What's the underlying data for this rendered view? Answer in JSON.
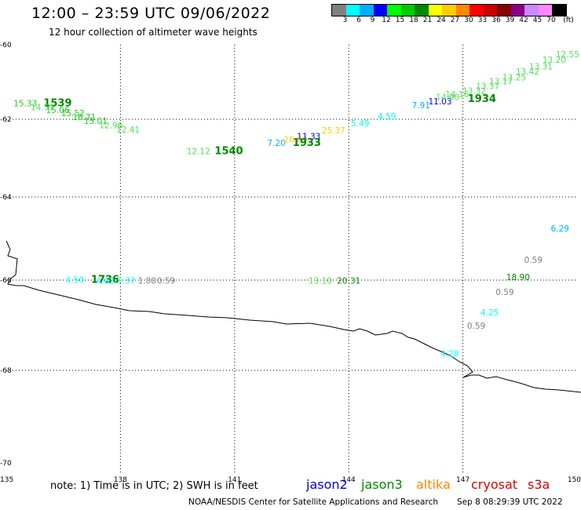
{
  "header": {
    "title": "12:00 – 23:59 UTC 09/06/2022",
    "subtitle": "12 hour collection of altimeter wave heights"
  },
  "colorbar": {
    "colors": [
      "#808080",
      "#00ffff",
      "#00b0ff",
      "#0000ff",
      "#00ff00",
      "#00cc00",
      "#008800",
      "#ffff00",
      "#ffcc00",
      "#ff8800",
      "#ff0000",
      "#cc0000",
      "#880000",
      "#880088",
      "#cc88ff",
      "#ff88ff",
      "#000000"
    ],
    "labels": [
      "3",
      "6",
      "9",
      "12",
      "15",
      "18",
      "21",
      "24",
      "27",
      "30",
      "33",
      "36",
      "39",
      "42",
      "45",
      "70",
      "(ft)"
    ]
  },
  "axes": {
    "lat_ticks": [
      "-60",
      "-62",
      "-64",
      "-66",
      "-68",
      "-70"
    ],
    "lon_ticks": [
      "135",
      "138",
      "141",
      "144",
      "147",
      "150"
    ]
  },
  "measurements": [
    {
      "text": "15.33",
      "color": "#22cc22",
      "lon": 135.5,
      "lat": -61.57,
      "bold": false
    },
    {
      "text": "1539",
      "color": "#008800",
      "lon": 136.35,
      "lat": -61.57,
      "bold": true
    },
    {
      "text": "14.51",
      "color": "#55dd55",
      "lon": 135.95,
      "lat": -61.67,
      "bold": false
    },
    {
      "text": "15.06",
      "color": "#22cc22",
      "lon": 136.35,
      "lat": -61.75,
      "bold": false
    },
    {
      "text": "15.52",
      "color": "#22cc22",
      "lon": 136.75,
      "lat": -61.83,
      "bold": false
    },
    {
      "text": "16.71",
      "color": "#22cc22",
      "lon": 137.05,
      "lat": -61.94,
      "bold": false
    },
    {
      "text": "15.01",
      "color": "#22cc22",
      "lon": 137.35,
      "lat": -62.04,
      "bold": false
    },
    {
      "text": "12.96",
      "color": "#55dd55",
      "lon": 137.75,
      "lat": -62.15,
      "bold": false
    },
    {
      "text": "12.41",
      "color": "#55dd55",
      "lon": 138.2,
      "lat": -62.26,
      "bold": false
    },
    {
      "text": "12.12",
      "color": "#55dd55",
      "lon": 140.05,
      "lat": -62.82,
      "bold": false
    },
    {
      "text": "1540",
      "color": "#008800",
      "lon": 140.85,
      "lat": -62.82,
      "bold": true
    },
    {
      "text": "7.20",
      "color": "#00b0ff",
      "lon": 142.1,
      "lat": -62.61,
      "bold": false
    },
    {
      "text": "26.60",
      "color": "#ffcc00",
      "lon": 142.6,
      "lat": -62.52,
      "bold": false
    },
    {
      "text": "11.33",
      "color": "#0000ff",
      "lon": 142.95,
      "lat": -62.43,
      "bold": false
    },
    {
      "text": "1933",
      "color": "#008800",
      "lon": 142.9,
      "lat": -62.61,
      "bold": true
    },
    {
      "text": "25.37",
      "color": "#ffcc00",
      "lon": 143.6,
      "lat": -62.28,
      "bold": false
    },
    {
      "text": "5.49",
      "color": "#00ffff",
      "lon": 144.3,
      "lat": -62.1,
      "bold": false
    },
    {
      "text": "4.59",
      "color": "#00ffff",
      "lon": 145.0,
      "lat": -61.92,
      "bold": false
    },
    {
      "text": "7.91",
      "color": "#00b0ff",
      "lon": 145.9,
      "lat": -61.62,
      "bold": false
    },
    {
      "text": "11.03",
      "color": "#0000ff",
      "lon": 146.4,
      "lat": -61.52,
      "bold": false
    },
    {
      "text": "14.90",
      "color": "#55dd55",
      "lon": 146.6,
      "lat": -61.4,
      "bold": false
    },
    {
      "text": "14.16",
      "color": "#55dd55",
      "lon": 146.85,
      "lat": -61.33,
      "bold": false
    },
    {
      "text": "13.32",
      "color": "#55dd55",
      "lon": 147.3,
      "lat": -61.23,
      "bold": false
    },
    {
      "text": "1934",
      "color": "#008800",
      "lon": 147.5,
      "lat": -61.45,
      "bold": true
    },
    {
      "text": "13.37",
      "color": "#55dd55",
      "lon": 147.65,
      "lat": -61.1,
      "bold": false
    },
    {
      "text": "13.17",
      "color": "#55dd55",
      "lon": 148.0,
      "lat": -60.98,
      "bold": false
    },
    {
      "text": "13.25",
      "color": "#55dd55",
      "lon": 148.35,
      "lat": -60.87,
      "bold": false
    },
    {
      "text": "13.42",
      "color": "#55dd55",
      "lon": 148.7,
      "lat": -60.72,
      "bold": false
    },
    {
      "text": "13.31",
      "color": "#55dd55",
      "lon": 149.05,
      "lat": -60.58,
      "bold": false
    },
    {
      "text": "13.20",
      "color": "#55dd55",
      "lon": 149.4,
      "lat": -60.4,
      "bold": false
    },
    {
      "text": "12.55",
      "color": "#55dd55",
      "lon": 149.75,
      "lat": -60.25,
      "bold": false
    },
    {
      "text": "4.50",
      "color": "#00ffff",
      "lon": 136.8,
      "lat": -65.99,
      "bold": false
    },
    {
      "text": "1736",
      "color": "#008800",
      "lon": 137.6,
      "lat": -65.99,
      "bold": true
    },
    {
      "text": "4.62",
      "color": "#00ffff",
      "lon": 137.6,
      "lat": -66.01,
      "bold": false
    },
    {
      "text": "5.37",
      "color": "#00ffff",
      "lon": 138.15,
      "lat": -66.01,
      "bold": false
    },
    {
      "text": "1.88",
      "color": "#808080",
      "lon": 138.7,
      "lat": -66.01,
      "bold": false
    },
    {
      "text": "0.59",
      "color": "#808080",
      "lon": 139.2,
      "lat": -66.01,
      "bold": false
    },
    {
      "text": "13.10",
      "color": "#55dd55",
      "lon": 143.25,
      "lat": -66.01,
      "bold": false
    },
    {
      "text": "20.31",
      "color": "#008800",
      "lon": 144.0,
      "lat": -66.01,
      "bold": false
    },
    {
      "text": "6.29",
      "color": "#00b0ff",
      "lon": 149.55,
      "lat": -64.75,
      "bold": false
    },
    {
      "text": "0.59",
      "color": "#808080",
      "lon": 148.85,
      "lat": -65.51,
      "bold": false
    },
    {
      "text": "18.90",
      "color": "#008800",
      "lon": 148.45,
      "lat": -65.92,
      "bold": false
    },
    {
      "text": "0.59",
      "color": "#808080",
      "lon": 148.1,
      "lat": -66.26,
      "bold": false
    },
    {
      "text": "4.25",
      "color": "#00ffff",
      "lon": 147.7,
      "lat": -66.71,
      "bold": false
    },
    {
      "text": "0.59",
      "color": "#808080",
      "lon": 147.35,
      "lat": -67.01,
      "bold": false
    },
    {
      "text": "4.28",
      "color": "#00ffff",
      "lon": 146.65,
      "lat": -67.63,
      "bold": false
    }
  ],
  "footer": {
    "note": "note: 1) Time is in UTC; 2) SWH is in feet",
    "satellites": [
      {
        "name": "jason2",
        "color": "#0000dd"
      },
      {
        "name": "jason3",
        "color": "#008800"
      },
      {
        "name": "altika",
        "color": "#ff8800"
      },
      {
        "name": "cryosat",
        "color": "#dd0000"
      },
      {
        "name": "s3a",
        "color": "#cc0000"
      }
    ],
    "credit": "NOAA/NESDIS Center for Satellite Applications and Research",
    "timestamp": "Sep  8 08:29:39 UTC 2022"
  }
}
